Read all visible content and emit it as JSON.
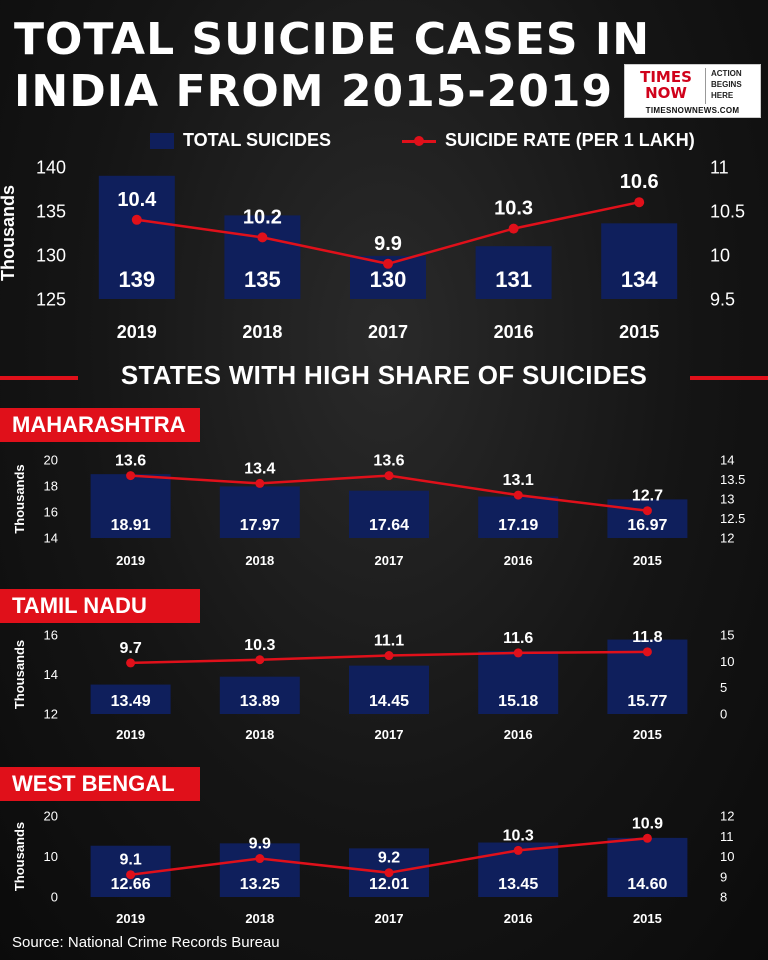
{
  "title": {
    "line1": "TOTAL SUICIDE CASES IN",
    "line2": "INDIA FROM 2015-2019"
  },
  "logo": {
    "brand_line1": "TIMES",
    "brand_line2": "NOW",
    "tag_line1": "ACTION",
    "tag_line2": "BEGINS",
    "tag_line3": "HERE",
    "url": "TIMESNOWNEWS.COM"
  },
  "legend": {
    "bars": "TOTAL SUICIDES",
    "line": "SUICIDE RATE (PER 1 LAKH)"
  },
  "section_heading": "STATES WITH HIGH SHARE OF SUICIDES",
  "source": "Source: National Crime Records Bureau",
  "colors": {
    "bar": "#0f1f5c",
    "line": "#e0101a",
    "accent": "#e0101a",
    "text": "#ffffff"
  },
  "chart_data": [
    {
      "id": "india",
      "type": "bar+line",
      "title": "",
      "categories": [
        "2019",
        "2018",
        "2017",
        "2016",
        "2015"
      ],
      "series": [
        {
          "name": "TOTAL SUICIDES",
          "type": "bar",
          "values": [
            139,
            134.5,
            129.9,
            131,
            133.6
          ],
          "labels": [
            "139",
            "135",
            "130",
            "131",
            "134"
          ]
        },
        {
          "name": "SUICIDE RATE (PER 1 LAKH)",
          "type": "line",
          "values": [
            10.4,
            10.2,
            9.9,
            10.3,
            10.6
          ],
          "labels": [
            "10.4",
            "10.2",
            "9.9",
            "10.3",
            "10.6"
          ]
        }
      ],
      "ylabel": "Thousands",
      "ylim": [
        125,
        140
      ],
      "yticks": [
        "125",
        "130",
        "135",
        "140"
      ],
      "y2lim": [
        9.5,
        11
      ],
      "y2ticks": [
        "9.5",
        "10",
        "10.5",
        "11"
      ]
    },
    {
      "id": "maharashtra",
      "type": "bar+line",
      "title": "MAHARASHTRA",
      "categories": [
        "2019",
        "2018",
        "2017",
        "2016",
        "2015"
      ],
      "series": [
        {
          "name": "TOTAL SUICIDES",
          "type": "bar",
          "values": [
            18.91,
            17.97,
            17.64,
            17.19,
            16.97
          ],
          "labels": [
            "18.91",
            "17.97",
            "17.64",
            "17.19",
            "16.97"
          ]
        },
        {
          "name": "SUICIDE RATE (PER 1 LAKH)",
          "type": "line",
          "values": [
            13.6,
            13.4,
            13.6,
            13.1,
            12.7
          ],
          "labels": [
            "13.6",
            "13.4",
            "13.6",
            "13.1",
            "12.7"
          ]
        }
      ],
      "ylabel": "Thousands",
      "ylim": [
        14,
        20
      ],
      "yticks": [
        "14",
        "16",
        "18",
        "20"
      ],
      "y2lim": [
        12,
        14
      ],
      "y2ticks": [
        "12",
        "12.5",
        "13",
        "13.5",
        "14"
      ]
    },
    {
      "id": "tamil_nadu",
      "type": "bar+line",
      "title": "TAMIL NADU",
      "categories": [
        "2019",
        "2018",
        "2017",
        "2016",
        "2015"
      ],
      "series": [
        {
          "name": "TOTAL SUICIDES",
          "type": "bar",
          "values": [
            13.49,
            13.89,
            14.45,
            15.18,
            15.77
          ],
          "labels": [
            "13.49",
            "13.89",
            "14.45",
            "15.18",
            "15.77"
          ]
        },
        {
          "name": "SUICIDE RATE (PER 1 LAKH)",
          "type": "line",
          "values": [
            9.7,
            10.3,
            11.1,
            11.6,
            11.8
          ],
          "labels": [
            "9.7",
            "10.3",
            "11.1",
            "11.6",
            "11.8"
          ]
        }
      ],
      "ylabel": "Thousands",
      "ylim": [
        12,
        16
      ],
      "yticks": [
        "12",
        "14",
        "16"
      ],
      "y2lim": [
        0,
        15
      ],
      "y2ticks": [
        "0",
        "5",
        "10",
        "15"
      ]
    },
    {
      "id": "west_bengal",
      "type": "bar+line",
      "title": "WEST BENGAL",
      "categories": [
        "2019",
        "2018",
        "2017",
        "2016",
        "2015"
      ],
      "series": [
        {
          "name": "TOTAL SUICIDES",
          "type": "bar",
          "values": [
            12.66,
            13.25,
            12.01,
            13.45,
            14.6
          ],
          "labels": [
            "12.66",
            "13.25",
            "12.01",
            "13.45",
            "14.60"
          ]
        },
        {
          "name": "SUICIDE RATE (PER 1 LAKH)",
          "type": "line",
          "values": [
            9.1,
            9.9,
            9.2,
            10.3,
            10.9
          ],
          "labels": [
            "9.1",
            "9.9",
            "9.2",
            "10.3",
            "10.9"
          ]
        }
      ],
      "ylabel": "Thousands",
      "ylim": [
        0,
        20
      ],
      "yticks": [
        "0",
        "10",
        "20"
      ],
      "y2lim": [
        8,
        12
      ],
      "y2ticks": [
        "8",
        "9",
        "10",
        "11",
        "12"
      ]
    }
  ]
}
